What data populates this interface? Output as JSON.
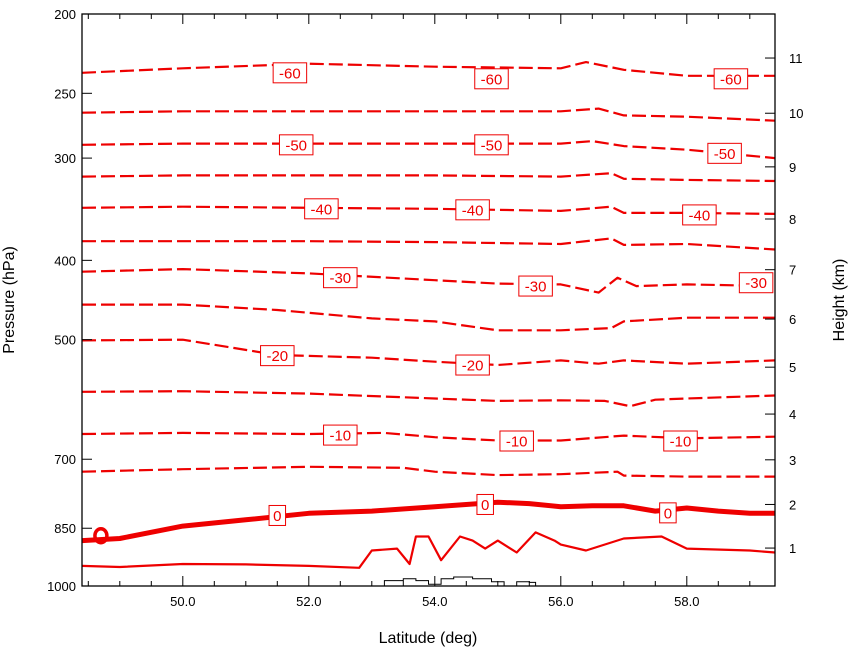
{
  "chart_data": {
    "type": "line",
    "xlabel": "Latitude (deg)",
    "ylabel": "Pressure (hPa)",
    "y2label": "Height (km)",
    "xlim": [
      48.4,
      59.4
    ],
    "x_ticks": [
      "50.0",
      "52.0",
      "54.0",
      "56.0",
      "58.0"
    ],
    "y_scale": "log",
    "ylim": [
      1000,
      200
    ],
    "y_ticks": [
      "200",
      "250",
      "300",
      "400",
      "500",
      "700",
      "850",
      "1000"
    ],
    "y2_ticks": [
      "1",
      "2",
      "3",
      "4",
      "5",
      "6",
      "7",
      "8",
      "9",
      "10",
      "11"
    ],
    "contour_levels": [
      "-60",
      "-55",
      "-50",
      "-45",
      "-40",
      "-35",
      "-30",
      "-25",
      "-20",
      "-15",
      "-10",
      "-5",
      "0",
      "5"
    ],
    "contour_labels": [
      {
        "text": "-60",
        "lat": 51.7,
        "p": 236
      },
      {
        "text": "-60",
        "lat": 54.9,
        "p": 240
      },
      {
        "text": "-60",
        "lat": 58.7,
        "p": 240
      },
      {
        "text": "-50",
        "lat": 51.8,
        "p": 289
      },
      {
        "text": "-50",
        "lat": 54.9,
        "p": 289
      },
      {
        "text": "-50",
        "lat": 58.6,
        "p": 296
      },
      {
        "text": "-40",
        "lat": 52.2,
        "p": 346
      },
      {
        "text": "-40",
        "lat": 54.6,
        "p": 347
      },
      {
        "text": "-40",
        "lat": 58.2,
        "p": 352
      },
      {
        "text": "-30",
        "lat": 52.5,
        "p": 420
      },
      {
        "text": "-30",
        "lat": 55.6,
        "p": 430
      },
      {
        "text": "-30",
        "lat": 59.1,
        "p": 426
      },
      {
        "text": "-20",
        "lat": 51.5,
        "p": 523
      },
      {
        "text": "-20",
        "lat": 54.6,
        "p": 537
      },
      {
        "text": "-10",
        "lat": 52.5,
        "p": 654
      },
      {
        "text": "-10",
        "lat": 55.3,
        "p": 665
      },
      {
        "text": "-10",
        "lat": 57.9,
        "p": 665
      },
      {
        "text": "0",
        "lat": 51.5,
        "p": 820
      },
      {
        "text": "0",
        "lat": 54.8,
        "p": 795
      },
      {
        "text": "0",
        "lat": 57.7,
        "p": 814
      }
    ],
    "contours": [
      {
        "level": -60,
        "style": "dashed",
        "points": [
          [
            48.4,
            236
          ],
          [
            50,
            233
          ],
          [
            52,
            230
          ],
          [
            54,
            232
          ],
          [
            56,
            233
          ],
          [
            56.4,
            229
          ],
          [
            57,
            234
          ],
          [
            58,
            238
          ],
          [
            59.4,
            238
          ]
        ]
      },
      {
        "level": -55,
        "style": "dashed",
        "points": [
          [
            48.4,
            264
          ],
          [
            50,
            263
          ],
          [
            52,
            263
          ],
          [
            54,
            263
          ],
          [
            56,
            263
          ],
          [
            56.6,
            261
          ],
          [
            57,
            266
          ],
          [
            58,
            267
          ],
          [
            59.4,
            270
          ]
        ]
      },
      {
        "text": "",
        "level": -50,
        "style": "dashed",
        "points": [
          [
            48.4,
            289
          ],
          [
            50,
            288
          ],
          [
            52,
            288
          ],
          [
            54,
            288
          ],
          [
            56,
            288
          ],
          [
            56.5,
            286
          ],
          [
            57,
            290
          ],
          [
            58,
            293
          ],
          [
            59.4,
            300
          ]
        ]
      },
      {
        "level": -45,
        "style": "dashed",
        "points": [
          [
            48.4,
            316
          ],
          [
            50,
            315
          ],
          [
            52,
            315
          ],
          [
            54,
            315
          ],
          [
            56,
            316
          ],
          [
            56.8,
            313
          ],
          [
            57,
            318
          ],
          [
            58,
            319
          ],
          [
            59.4,
            320
          ]
        ]
      },
      {
        "level": -40,
        "style": "dashed",
        "points": [
          [
            48.4,
            345
          ],
          [
            50,
            344
          ],
          [
            52,
            345
          ],
          [
            54,
            346
          ],
          [
            56,
            348
          ],
          [
            56.8,
            344
          ],
          [
            57,
            350
          ],
          [
            58,
            350
          ],
          [
            59.4,
            351
          ]
        ]
      },
      {
        "level": -35,
        "style": "dashed",
        "points": [
          [
            48.4,
            379
          ],
          [
            50,
            379
          ],
          [
            52,
            379
          ],
          [
            54,
            380
          ],
          [
            56,
            382
          ],
          [
            56.8,
            376
          ],
          [
            57,
            383
          ],
          [
            58,
            382
          ],
          [
            59.4,
            388
          ]
        ]
      },
      {
        "level": -30,
        "style": "dashed",
        "points": [
          [
            48.4,
            413
          ],
          [
            50,
            410
          ],
          [
            52,
            415
          ],
          [
            54,
            423
          ],
          [
            55,
            427
          ],
          [
            56,
            428
          ],
          [
            56.6,
            438
          ],
          [
            56.9,
            420
          ],
          [
            57.2,
            430
          ],
          [
            58,
            428
          ],
          [
            59.4,
            430
          ]
        ]
      },
      {
        "level": -25,
        "style": "dashed",
        "points": [
          [
            48.4,
            453
          ],
          [
            50,
            453
          ],
          [
            51.5,
            460
          ],
          [
            53,
            471
          ],
          [
            54,
            475
          ],
          [
            55,
            487
          ],
          [
            56,
            487
          ],
          [
            56.8,
            484
          ],
          [
            57,
            475
          ],
          [
            58,
            470
          ],
          [
            59.4,
            470
          ]
        ]
      },
      {
        "level": -20,
        "style": "dashed",
        "points": [
          [
            48.4,
            501
          ],
          [
            50,
            500
          ],
          [
            51.5,
            522
          ],
          [
            53,
            526
          ],
          [
            54,
            532
          ],
          [
            55,
            537
          ],
          [
            56,
            530
          ],
          [
            56.6,
            535
          ],
          [
            57,
            530
          ],
          [
            58,
            535
          ],
          [
            59.4,
            530
          ]
        ]
      },
      {
        "level": -15,
        "style": "dashed",
        "points": [
          [
            48.4,
            579
          ],
          [
            50,
            578
          ],
          [
            52,
            582
          ],
          [
            54,
            590
          ],
          [
            55,
            594
          ],
          [
            56,
            593
          ],
          [
            56.7,
            594
          ],
          [
            57.1,
            603
          ],
          [
            57.5,
            592
          ],
          [
            58,
            590
          ],
          [
            59.4,
            585
          ]
        ]
      },
      {
        "level": -10,
        "style": "dashed",
        "points": [
          [
            48.4,
            652
          ],
          [
            50,
            650
          ],
          [
            52,
            652
          ],
          [
            53.2,
            650
          ],
          [
            54,
            658
          ],
          [
            55,
            664
          ],
          [
            56,
            664
          ],
          [
            57,
            655
          ],
          [
            58,
            660
          ],
          [
            59.4,
            657
          ]
        ]
      },
      {
        "level": -5,
        "style": "dashed",
        "points": [
          [
            48.4,
            725
          ],
          [
            50,
            720
          ],
          [
            52,
            715
          ],
          [
            53.5,
            717
          ],
          [
            54,
            725
          ],
          [
            55,
            732
          ],
          [
            56,
            730
          ],
          [
            56.9,
            725
          ],
          [
            57,
            733
          ],
          [
            58,
            735
          ],
          [
            59.4,
            735
          ]
        ]
      },
      {
        "level": 0,
        "style": "thick",
        "points": [
          [
            48.4,
            880
          ],
          [
            49,
            875
          ],
          [
            50,
            845
          ],
          [
            51,
            830
          ],
          [
            52,
            815
          ],
          [
            53,
            810
          ],
          [
            54,
            800
          ],
          [
            55,
            790
          ],
          [
            55.5,
            793
          ],
          [
            56,
            800
          ],
          [
            56.5,
            798
          ],
          [
            57,
            798
          ],
          [
            57.5,
            810
          ],
          [
            58,
            803
          ],
          [
            58.5,
            810
          ],
          [
            59,
            815
          ],
          [
            59.4,
            815
          ]
        ]
      },
      {
        "level": 5,
        "style": "solid",
        "points": [
          [
            48.4,
            945
          ],
          [
            49,
            948
          ],
          [
            50,
            940
          ],
          [
            51,
            941
          ],
          [
            52,
            945
          ],
          [
            52.8,
            950
          ],
          [
            53,
            905
          ],
          [
            53.4,
            900
          ],
          [
            53.6,
            940
          ],
          [
            53.7,
            870
          ],
          [
            53.9,
            870
          ],
          [
            54.1,
            930
          ],
          [
            54.4,
            870
          ],
          [
            54.6,
            880
          ],
          [
            54.8,
            900
          ],
          [
            55,
            880
          ],
          [
            55.3,
            910
          ],
          [
            55.6,
            860
          ],
          [
            55.9,
            880
          ],
          [
            56,
            890
          ],
          [
            56.4,
            905
          ],
          [
            57,
            875
          ],
          [
            57.6,
            870
          ],
          [
            58,
            900
          ],
          [
            59,
            905
          ],
          [
            59.4,
            910
          ]
        ]
      }
    ],
    "terrain": {
      "style": "step",
      "points": [
        [
          53.1,
          1000
        ],
        [
          53.2,
          985
        ],
        [
          53.5,
          980
        ],
        [
          53.7,
          985
        ],
        [
          53.9,
          995
        ],
        [
          54.1,
          980
        ],
        [
          54.3,
          975
        ],
        [
          54.6,
          980
        ],
        [
          54.9,
          988
        ],
        [
          55.1,
          1000
        ],
        [
          55.3,
          988
        ],
        [
          55.5,
          990
        ],
        [
          55.6,
          1000
        ]
      ]
    }
  }
}
